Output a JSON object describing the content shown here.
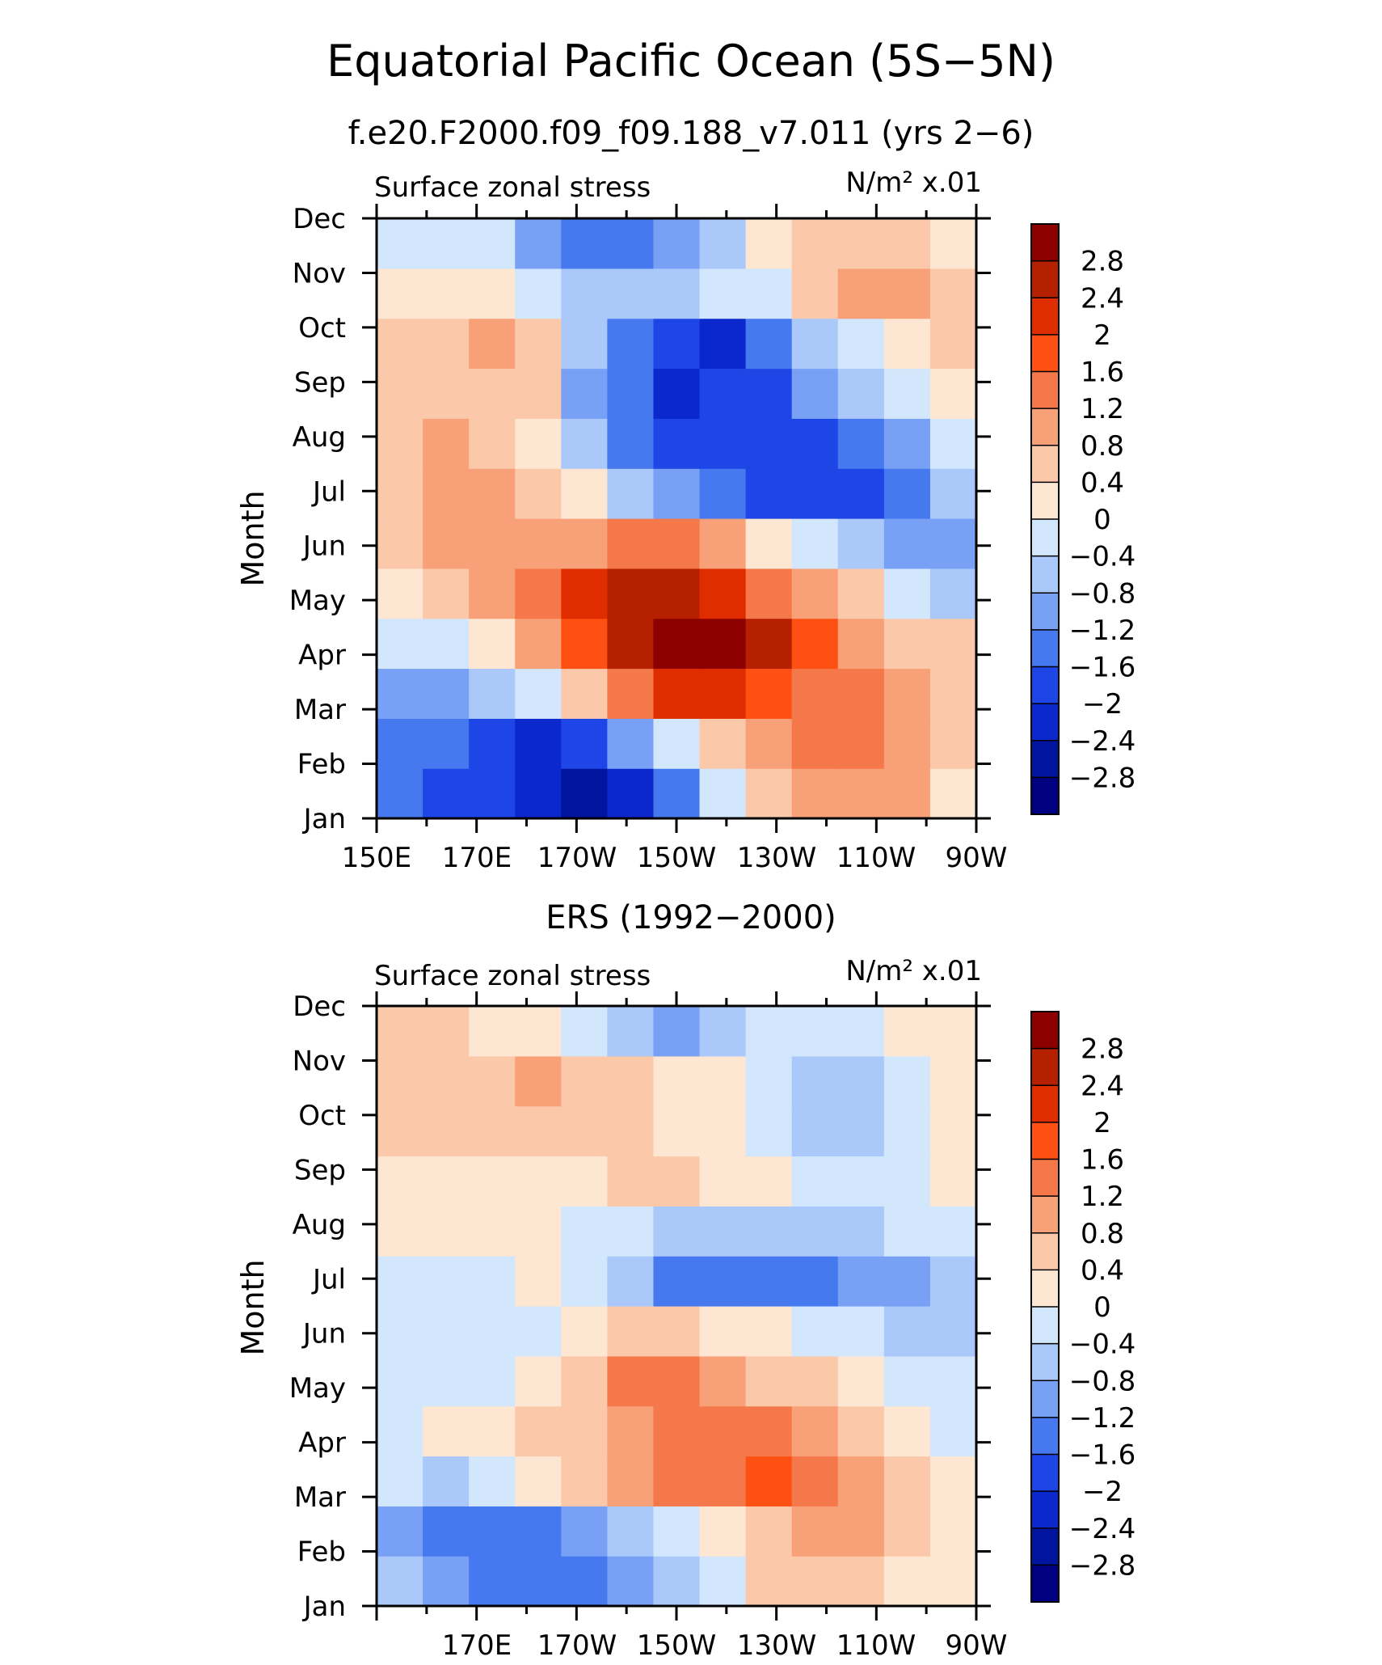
{
  "figure": {
    "title": "Equatorial Pacific Ocean (5S−5N)"
  },
  "colors": [
    {
      "range": "< -2.8",
      "hex": "#000080"
    },
    {
      "range": "-2.8 to -2.4",
      "hex": "#0014a0"
    },
    {
      "range": "-2.4 to -2",
      "hex": "#0a28cc"
    },
    {
      "range": "-2 to -1.6",
      "hex": "#1e46e6"
    },
    {
      "range": "-1.6 to -1.2",
      "hex": "#4678f0"
    },
    {
      "range": "-1.2 to -0.8",
      "hex": "#78a0f5"
    },
    {
      "range": "-0.8 to -0.4",
      "hex": "#aac8fa"
    },
    {
      "range": "-0.4 to 0",
      "hex": "#d2e6fc"
    },
    {
      "range": "0 to 0.4",
      "hex": "#fde6d2"
    },
    {
      "range": "0.4 to 0.8",
      "hex": "#fbc8aa"
    },
    {
      "range": "0.8 to 1.2",
      "hex": "#f8a078"
    },
    {
      "range": "1.2 to 1.6",
      "hex": "#f5784a"
    },
    {
      "range": "1.6 to 2",
      "hex": "#ff5014"
    },
    {
      "range": "2 to 2.4",
      "hex": "#e02d00"
    },
    {
      "range": "2.4 to 2.8",
      "hex": "#b42000"
    },
    {
      "range": "> 2.8",
      "hex": "#8c0000"
    }
  ],
  "chart_data": [
    {
      "type": "heatmap",
      "title": "f.e20.F2000.f09_f09.188_v7.011 (yrs 2−6)",
      "left_label": "Surface zonal stress",
      "right_label": "N/m² x.01",
      "ylabel": "Month",
      "xlabel": "",
      "x_tick_labels": [
        "150E",
        "170E",
        "170W",
        "150W",
        "130W",
        "110W",
        "90W"
      ],
      "y_tick_labels": [
        "Jan",
        "Feb",
        "Mar",
        "Apr",
        "May",
        "Jun",
        "Jul",
        "Aug",
        "Sep",
        "Oct",
        "Nov",
        "Dec"
      ],
      "x_longitudes": [
        150,
        160,
        170,
        180,
        190,
        200,
        210,
        220,
        230,
        240,
        250,
        260,
        270
      ],
      "colorbar_levels": [
        "2.8",
        "2.4",
        "2",
        "1.6",
        "1.2",
        "0.8",
        "0.4",
        "0",
        "−0.4",
        "−0.8",
        "−1.2",
        "−1.6",
        "−2",
        "−2.4",
        "−2.8"
      ],
      "values": [
        [
          -1.5,
          -1.8,
          -1.8,
          -2.4,
          -2.6,
          -2.2,
          -1.4,
          -0.3,
          0.6,
          1.1,
          1.0,
          0.8,
          0.3
        ],
        [
          -1.5,
          -1.6,
          -1.8,
          -2.2,
          -1.9,
          -1.2,
          -0.4,
          0.4,
          1.1,
          1.3,
          1.5,
          1.0,
          0.5
        ],
        [
          -1.0,
          -1.1,
          -0.8,
          -0.3,
          0.4,
          1.5,
          2.2,
          2.0,
          1.8,
          1.5,
          1.2,
          0.9,
          0.5
        ],
        [
          -0.2,
          -0.2,
          0.2,
          1.0,
          1.8,
          2.6,
          3.0,
          3.0,
          2.7,
          1.8,
          1.0,
          0.6,
          0.4
        ],
        [
          0.2,
          0.5,
          1.0,
          1.5,
          2.0,
          2.4,
          2.6,
          2.2,
          1.5,
          0.9,
          0.4,
          -0.2,
          -0.8
        ],
        [
          0.6,
          0.8,
          0.8,
          0.9,
          1.1,
          1.3,
          1.2,
          0.8,
          0.2,
          -0.4,
          -0.8,
          -1.1,
          -1.0
        ],
        [
          0.7,
          0.9,
          0.8,
          0.5,
          0.1,
          -0.5,
          -1.1,
          -1.4,
          -1.7,
          -1.8,
          -1.9,
          -1.6,
          -0.7
        ],
        [
          0.7,
          1.0,
          0.6,
          0.2,
          -0.7,
          -1.6,
          -1.9,
          -1.8,
          -1.8,
          -1.7,
          -1.5,
          -1.0,
          -0.3
        ],
        [
          0.6,
          0.5,
          0.6,
          0.4,
          -0.9,
          -1.5,
          -2.2,
          -2.0,
          -1.7,
          -1.2,
          -0.6,
          -0.2,
          0.3
        ],
        [
          0.6,
          0.5,
          0.8,
          0.4,
          -0.6,
          -1.4,
          -1.8,
          -2.1,
          -1.6,
          -0.8,
          -0.2,
          0.3,
          0.5
        ],
        [
          0.3,
          0.2,
          0.2,
          -0.2,
          -0.5,
          -0.8,
          -0.6,
          -0.3,
          -0.1,
          0.4,
          0.8,
          1.0,
          0.6
        ],
        [
          -0.1,
          -0.2,
          -0.4,
          -1.0,
          -1.6,
          -1.6,
          -1.2,
          -0.5,
          0.0,
          0.4,
          0.6,
          0.5,
          0.3
        ]
      ]
    },
    {
      "type": "heatmap",
      "title": "ERS (1992−2000)",
      "left_label": "Surface zonal stress",
      "right_label": "N/m² x.01",
      "ylabel": "Month",
      "xlabel": "",
      "x_tick_labels": [
        "170E",
        "170W",
        "150W",
        "130W",
        "110W",
        "90W"
      ],
      "y_tick_labels": [
        "Jan",
        "Feb",
        "Mar",
        "Apr",
        "May",
        "Jun",
        "Jul",
        "Aug",
        "Sep",
        "Oct",
        "Nov",
        "Dec"
      ],
      "x_longitudes": [
        150,
        160,
        170,
        180,
        190,
        200,
        210,
        220,
        230,
        240,
        250,
        260,
        270
      ],
      "colorbar_levels": [
        "2.8",
        "2.4",
        "2",
        "1.6",
        "1.2",
        "0.8",
        "0.4",
        "0",
        "−0.4",
        "−0.8",
        "−1.2",
        "−1.6",
        "−2",
        "−2.4",
        "−2.8"
      ],
      "values": [
        [
          -0.7,
          -1.2,
          -1.4,
          -1.6,
          -1.3,
          -1.2,
          -0.6,
          -0.2,
          0.4,
          0.6,
          0.5,
          0.3,
          0.2
        ],
        [
          -1.0,
          -1.5,
          -1.3,
          -1.4,
          -1.1,
          -0.8,
          -0.3,
          0.2,
          0.6,
          0.9,
          0.8,
          0.5,
          0.3
        ],
        [
          -0.4,
          -0.6,
          -0.3,
          0.1,
          0.4,
          0.8,
          1.2,
          1.4,
          1.6,
          1.5,
          1.0,
          0.6,
          0.2
        ],
        [
          -0.1,
          0.1,
          0.0,
          0.4,
          0.6,
          1.0,
          1.5,
          1.4,
          1.2,
          1.0,
          0.7,
          0.3,
          -0.1
        ],
        [
          -0.3,
          -0.2,
          -0.2,
          0.2,
          0.5,
          1.2,
          1.3,
          1.1,
          0.6,
          0.5,
          0.3,
          -0.1,
          -0.2
        ],
        [
          -0.3,
          -0.2,
          -0.3,
          -0.1,
          0.2,
          0.5,
          0.4,
          0.2,
          0.1,
          -0.2,
          -0.3,
          -0.7,
          -0.6
        ],
        [
          -0.1,
          -0.1,
          -0.1,
          0.1,
          -0.3,
          -0.8,
          -1.3,
          -1.4,
          -1.3,
          -1.5,
          -1.2,
          -0.9,
          -0.5
        ],
        [
          0.2,
          0.2,
          0.1,
          0.1,
          -0.2,
          -0.4,
          -0.5,
          -0.7,
          -0.8,
          -0.6,
          -0.5,
          -0.4,
          -0.2
        ],
        [
          0.3,
          0.2,
          0.3,
          0.3,
          0.3,
          0.4,
          0.4,
          0.3,
          0.0,
          -0.2,
          -0.2,
          -0.1,
          0.0
        ],
        [
          0.4,
          0.4,
          0.5,
          0.5,
          0.4,
          0.4,
          0.2,
          0.0,
          -0.3,
          -0.6,
          -0.5,
          -0.2,
          0.1
        ],
        [
          0.5,
          0.5,
          0.5,
          0.8,
          0.4,
          0.4,
          0.2,
          0.0,
          -0.4,
          -0.5,
          -0.6,
          -0.3,
          0.0
        ],
        [
          0.4,
          0.6,
          0.3,
          0.0,
          -0.2,
          -0.7,
          -1.1,
          -0.8,
          -0.4,
          -0.2,
          -0.1,
          0.1,
          0.2
        ]
      ]
    }
  ]
}
